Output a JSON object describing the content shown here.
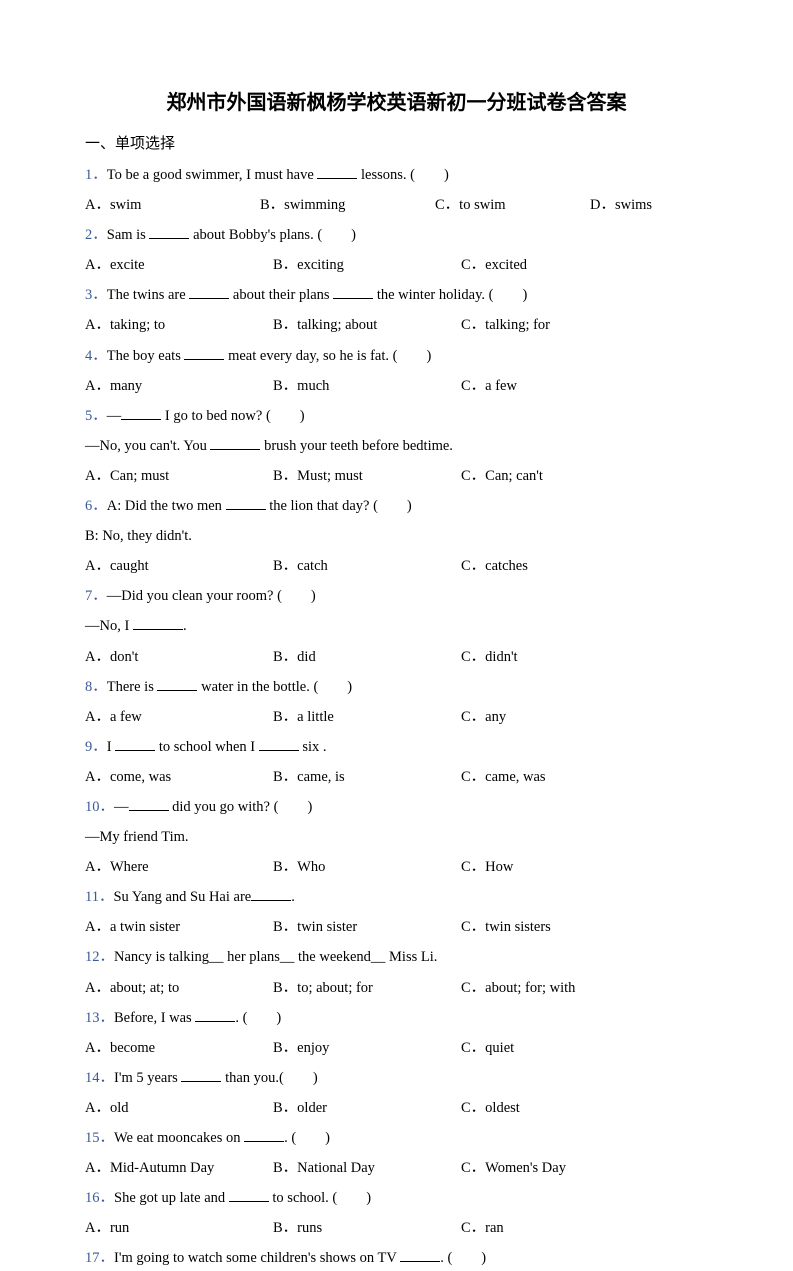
{
  "title": "郑州市外国语新枫杨学校英语新初一分班试卷含答案",
  "section_header": "一、单项选择",
  "questions": [
    {
      "num": "1．",
      "text_parts": [
        "To be a good swimmer, I must have ",
        " lessons. (　　)"
      ],
      "options": {
        "A": "swim",
        "B": "swimming",
        "C": "to swim",
        "D": "swims"
      },
      "layout": "4col"
    },
    {
      "num": "2．",
      "text_parts": [
        "Sam is ",
        " about Bobby's plans. (　　)"
      ],
      "options": {
        "A": "excite",
        "B": "exciting",
        "C": "excited"
      },
      "layout": "3col"
    },
    {
      "num": "3．",
      "text_parts": [
        "The twins are ",
        " about their plans ",
        " the winter holiday. (　　)"
      ],
      "options": {
        "A": "taking; to",
        "B": "talking; about",
        "C": "talking; for"
      },
      "layout": "3col"
    },
    {
      "num": "4．",
      "text_parts": [
        "The boy eats ",
        " meat every day, so he is fat. (　　)"
      ],
      "options": {
        "A": "many",
        "B": "much",
        "C": "a few"
      },
      "layout": "3col"
    },
    {
      "num": "5．",
      "text_parts": [
        "—",
        " I go to bed now? (　　)"
      ],
      "continuation": "—No, you can't. You ________ brush your teeth before bedtime.",
      "options": {
        "A": "Can; must",
        "B": "Must; must",
        "C": "Can; can't"
      },
      "layout": "3col"
    },
    {
      "num": "6．",
      "text_parts": [
        "A: Did the two men ",
        " the lion that day? (　　)"
      ],
      "continuation": "B: No, they didn't.",
      "options": {
        "A": "caught",
        "B": "catch",
        "C": "catches"
      },
      "layout": "3col"
    },
    {
      "num": "7．",
      "text_parts": [
        "—Did you clean your room? (　　)"
      ],
      "continuation": "—No, I ________.",
      "options": {
        "A": "don't",
        "B": "did",
        "C": "didn't"
      },
      "layout": "3col"
    },
    {
      "num": "8．",
      "text_parts": [
        "There is ",
        " water in the bottle. (　　)"
      ],
      "options": {
        "A": "a few",
        "B": "a little",
        "C": "any"
      },
      "layout": "3col"
    },
    {
      "num": "9．",
      "text_parts": [
        "I ",
        " to school when I ",
        " six ."
      ],
      "options": {
        "A": "come, was",
        "B": "came, is",
        "C": "came, was"
      },
      "layout": "3col"
    },
    {
      "num": "10．",
      "text_parts": [
        "—",
        " did you go with? (　　)"
      ],
      "continuation": "—My friend Tim.",
      "options": {
        "A": "Where",
        "B": "Who",
        "C": "How"
      },
      "layout": "3col"
    },
    {
      "num": "11．",
      "text_parts": [
        "Su Yang and Su Hai are",
        "."
      ],
      "options": {
        "A": "a twin sister",
        "B": "twin sister",
        "C": "twin sisters"
      },
      "layout": "3col"
    },
    {
      "num": "12．",
      "text_parts": [
        "Nancy is talking__ her plans__ the weekend__ Miss Li."
      ],
      "options": {
        "A": "about; at; to",
        "B": "to; about; for",
        "C": "about; for; with"
      },
      "layout": "3col"
    },
    {
      "num": "13．",
      "text_parts": [
        "Before, I was ",
        ". (　　)"
      ],
      "options": {
        "A": "become",
        "B": "enjoy",
        "C": "quiet"
      },
      "layout": "3col"
    },
    {
      "num": "14．",
      "text_parts": [
        "I'm 5 years ",
        " than you.(　　)"
      ],
      "options": {
        "A": "old",
        "B": "older",
        "C": "oldest"
      },
      "layout": "3col"
    },
    {
      "num": "15．",
      "text_parts": [
        "We eat mooncakes on ",
        ". (　　)"
      ],
      "options": {
        "A": "Mid-Autumn Day",
        "B": "National Day",
        "C": "Women's Day"
      },
      "layout": "3col"
    },
    {
      "num": "16．",
      "text_parts": [
        "She got up late and ",
        " to school. (　　)"
      ],
      "options": {
        "A": "run",
        "B": "runs",
        "C": "ran"
      },
      "layout": "3col"
    },
    {
      "num": "17．",
      "text_parts": [
        "I'm going to watch some children's shows on TV ",
        ". (　　)"
      ]
    }
  ]
}
